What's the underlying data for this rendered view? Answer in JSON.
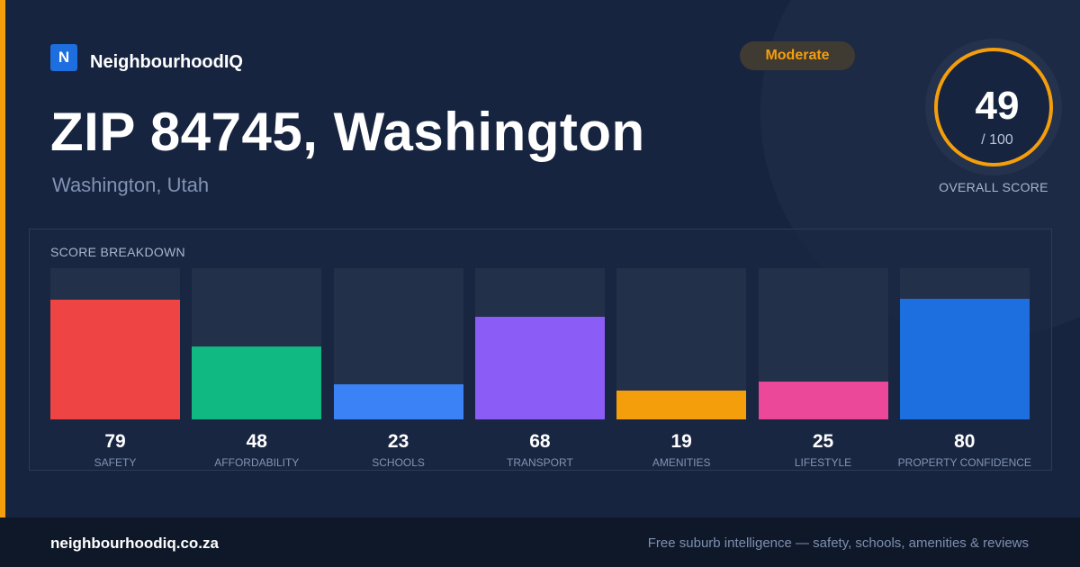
{
  "brand": {
    "logo_letter": "N",
    "name": "NeighbourhoodIQ"
  },
  "header": {
    "title": "ZIP 84745, Washington",
    "subtitle": "Washington, Utah",
    "rating_badge": "Moderate"
  },
  "overall_score": {
    "value": "49",
    "max_text": "/ 100",
    "label": "OVERALL SCORE",
    "value_fraction": 0.49
  },
  "breakdown": {
    "title": "SCORE BREAKDOWN",
    "metrics": [
      {
        "label": "SAFETY",
        "value": "79",
        "color": "#ef4444"
      },
      {
        "label": "AFFORDABILITY",
        "value": "48",
        "color": "#10b981"
      },
      {
        "label": "SCHOOLS",
        "value": "23",
        "color": "#3b82f6"
      },
      {
        "label": "TRANSPORT",
        "value": "68",
        "color": "#8b5cf6"
      },
      {
        "label": "AMENITIES",
        "value": "19",
        "color": "#f59e0b"
      },
      {
        "label": "LIFESTYLE",
        "value": "25",
        "color": "#ec4899"
      },
      {
        "label": "PROPERTY CONFIDENCE",
        "value": "80",
        "color": "#1d6fe0"
      }
    ]
  },
  "chart_data": {
    "type": "bar",
    "title": "SCORE BREAKDOWN",
    "categories": [
      "SAFETY",
      "AFFORDABILITY",
      "SCHOOLS",
      "TRANSPORT",
      "AMENITIES",
      "LIFESTYLE",
      "PROPERTY CONFIDENCE"
    ],
    "values": [
      79,
      48,
      23,
      68,
      19,
      25,
      80
    ],
    "ylim": [
      0,
      100
    ]
  },
  "footer": {
    "domain": "neighbourhoodiq.co.za",
    "tagline": "Free suburb intelligence — safety, schools, amenities & reviews"
  },
  "colors": {
    "accent": "#f59e0b",
    "background": "#172440",
    "brand_blue": "#1d6fe0"
  }
}
